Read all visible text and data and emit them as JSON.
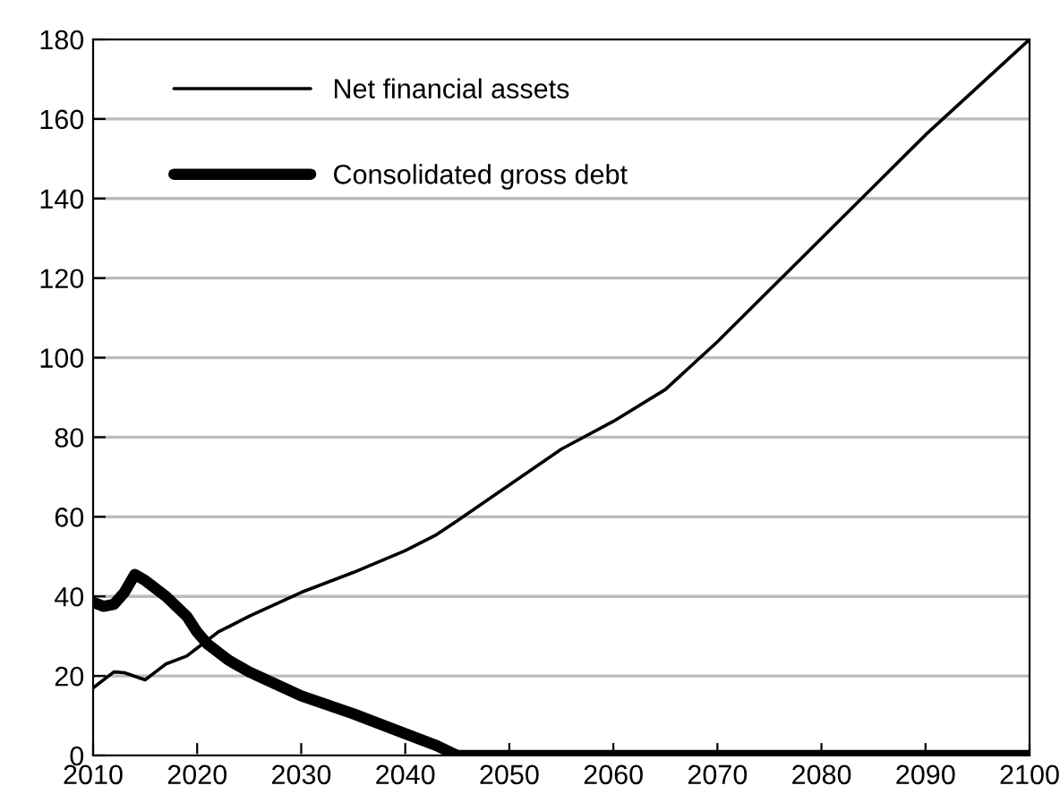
{
  "chart_data": {
    "type": "line",
    "xlim": [
      2010,
      2100
    ],
    "xticks": [
      2010,
      2020,
      2030,
      2040,
      2050,
      2060,
      2070,
      2080,
      2090,
      2100
    ],
    "ylim": [
      0,
      180
    ],
    "yticks": [
      0,
      20,
      40,
      60,
      80,
      100,
      120,
      140,
      160,
      180
    ],
    "grid": "y",
    "legend": "top left",
    "series": [
      {
        "name": "Net financial assets",
        "color": "#000000",
        "x": [
          2010,
          2012,
          2013,
          2015,
          2016,
          2017,
          2019,
          2020,
          2022,
          2025,
          2030,
          2035,
          2040,
          2043,
          2045,
          2050,
          2055,
          2060,
          2065,
          2070,
          2075,
          2080,
          2085,
          2090,
          2095,
          2100
        ],
        "values": [
          17,
          21,
          20.8,
          19,
          21,
          23,
          25,
          27,
          31,
          35,
          41,
          46,
          51.5,
          55.5,
          59,
          68,
          77,
          84,
          92,
          104,
          117,
          130,
          143,
          156,
          168,
          180
        ]
      },
      {
        "name": "Consolidated gross debt",
        "color": "#000000",
        "x": [
          2010,
          2011,
          2012,
          2013,
          2014,
          2015,
          2017,
          2019,
          2020,
          2021,
          2023,
          2025,
          2030,
          2035,
          2040,
          2043,
          2045,
          2100
        ],
        "values": [
          38.5,
          37.5,
          38,
          41,
          45.5,
          44,
          40,
          35,
          31,
          28,
          24,
          21,
          15,
          10.5,
          5.5,
          2.5,
          0,
          0
        ]
      }
    ]
  }
}
